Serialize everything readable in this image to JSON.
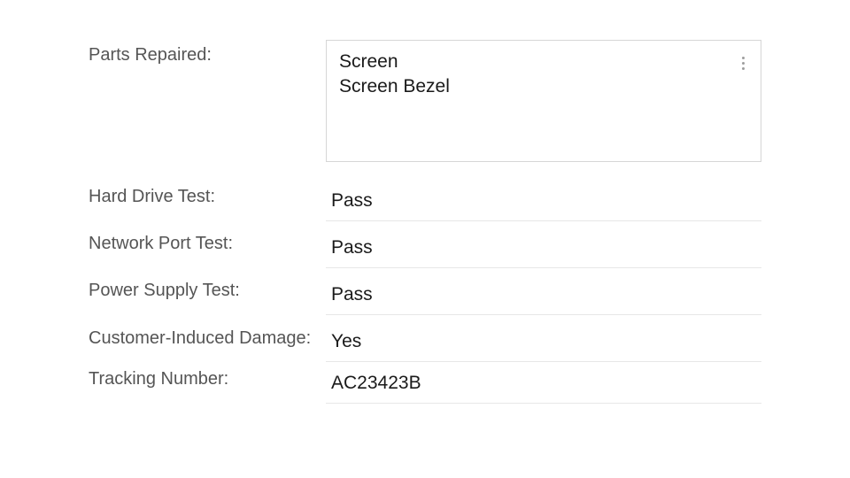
{
  "form": {
    "parts_repaired": {
      "label": "Parts Repaired:",
      "value_lines": [
        "Screen",
        "Screen Bezel"
      ]
    },
    "hard_drive_test": {
      "label": "Hard Drive Test:",
      "value": "Pass"
    },
    "network_port_test": {
      "label": "Network Port Test:",
      "value": "Pass"
    },
    "power_supply_test": {
      "label": "Power Supply Test:",
      "value": "Pass"
    },
    "customer_induced_damage": {
      "label": "Customer-Induced Damage:",
      "value": "Yes"
    },
    "tracking_number": {
      "label": "Tracking Number:",
      "value": "AC23423B"
    }
  },
  "styling": {
    "label_color": "#555555",
    "value_color": "#1a1a1a",
    "border_color": "#d6d6d6",
    "underline_color": "#e7e7e7",
    "label_fontsize": 20,
    "value_fontsize": 21,
    "background_color": "#ffffff"
  }
}
